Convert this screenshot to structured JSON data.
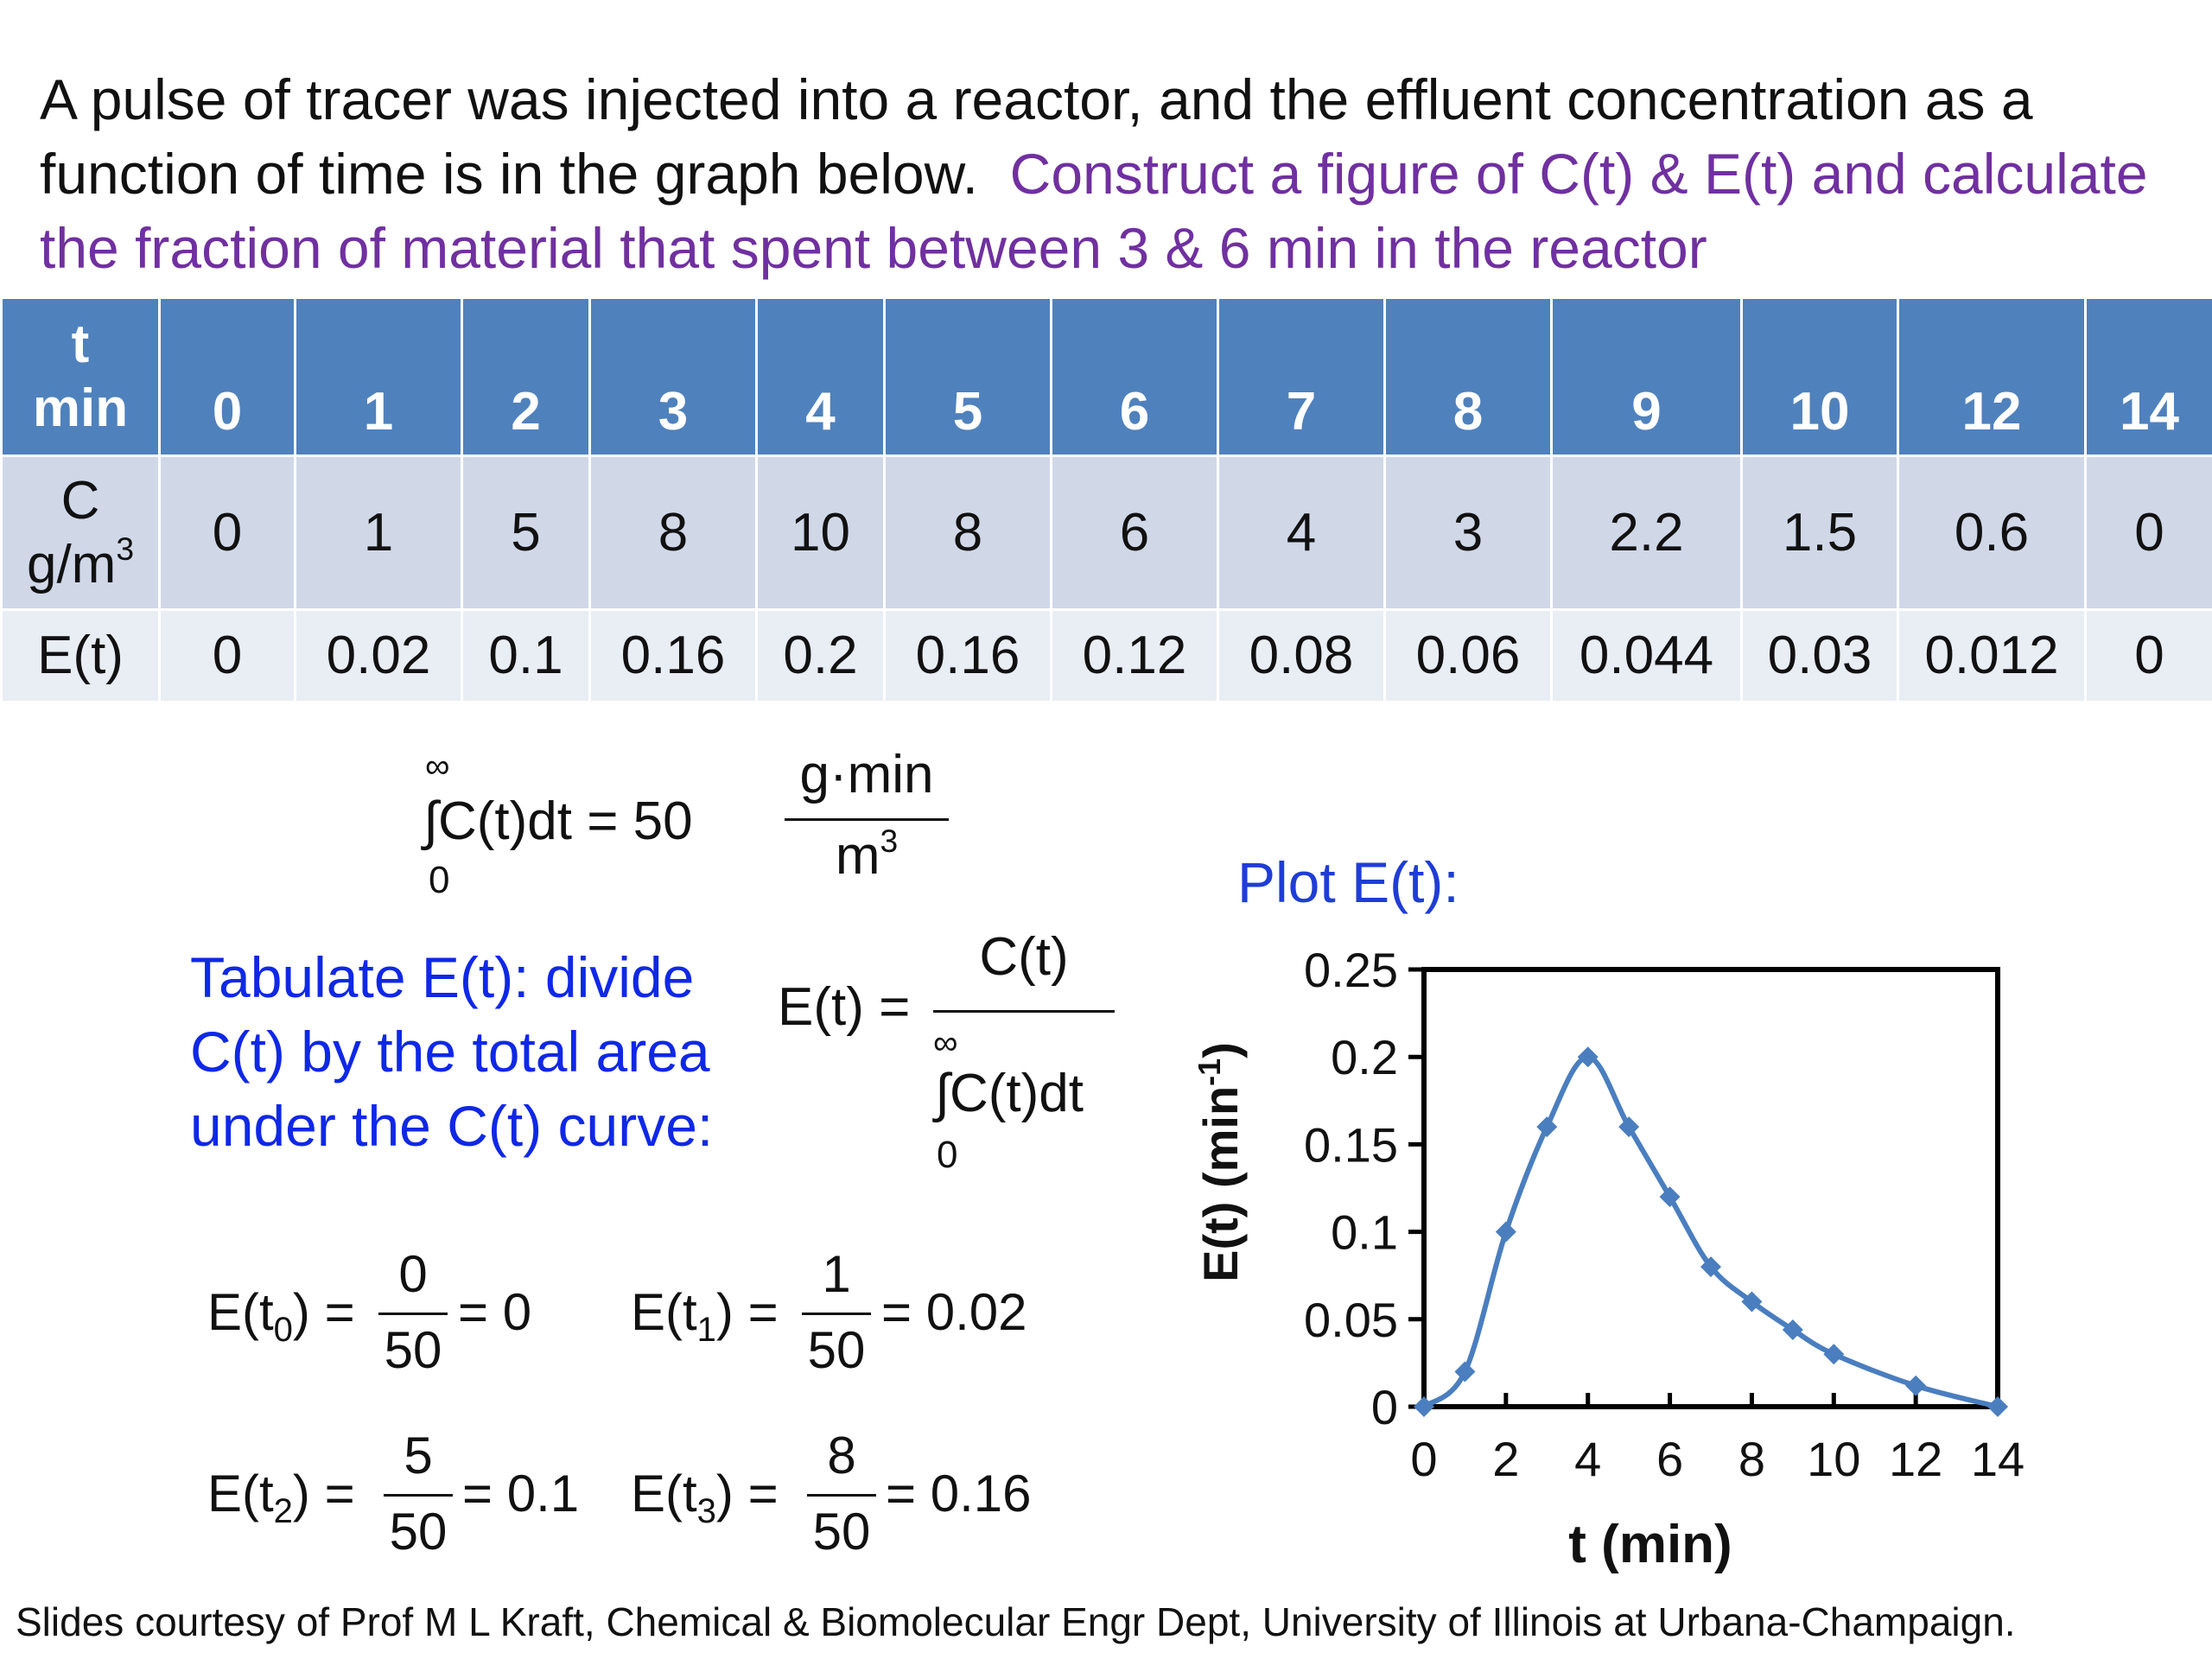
{
  "intro": {
    "statement": "A pulse of tracer was injected into a reactor, and the effluent concentration as a function of time is in the graph below.",
    "task": "Construct a figure of C(t) & E(t) and calculate the fraction of material that spent between 3 & 6 min in the reactor"
  },
  "table": {
    "t_label_1": "t",
    "t_label_2": "min",
    "c_label_1": "C",
    "c_label_2": "g/m",
    "c_label_sup": "3",
    "e_label": "E(t)",
    "t_values": [
      "0",
      "1",
      "2",
      "3",
      "4",
      "5",
      "6",
      "7",
      "8",
      "9",
      "10",
      "12",
      "14"
    ],
    "c_values": [
      "0",
      "1",
      "5",
      "8",
      "10",
      "8",
      "6",
      "4",
      "3",
      "2.2",
      "1.5",
      "0.6",
      "0"
    ],
    "e_values": [
      "0",
      "0.02",
      "0.1",
      "0.16",
      "0.2",
      "0.16",
      "0.12",
      "0.08",
      "0.06",
      "0.044",
      "0.03",
      "0.012",
      "0"
    ]
  },
  "integral_eq": {
    "upper": "∞",
    "lower": "0",
    "integrand": "∫C(t)dt = 50",
    "numerator": "g·min",
    "denominator": "m",
    "denominator_sup": "3"
  },
  "tabulate_text": {
    "line1": "Tabulate E(t): divide",
    "line2": "C(t) by the total area",
    "line3": "under the C(t) curve:"
  },
  "definition_eq": {
    "lhs": "E(t) =",
    "numerator": "C(t)",
    "upper": "∞",
    "denominator": "∫C(t)dt",
    "lower": "0"
  },
  "examples": [
    {
      "lhs": "E(t",
      "sub": "0",
      "close": ") =",
      "num": "0",
      "den": "50",
      "result": "= 0"
    },
    {
      "lhs": "E(t",
      "sub": "1",
      "close": ") =",
      "num": "1",
      "den": "50",
      "result": "= 0.02"
    },
    {
      "lhs": "E(t",
      "sub": "2",
      "close": ") =",
      "num": "5",
      "den": "50",
      "result": "= 0.1"
    },
    {
      "lhs": "E(t",
      "sub": "3",
      "close": ") =",
      "num": "8",
      "den": "50",
      "result": "= 0.16"
    }
  ],
  "plot_title": "Plot E(t):",
  "chart_data": {
    "type": "line",
    "x": [
      0,
      1,
      2,
      3,
      4,
      5,
      6,
      7,
      8,
      9,
      10,
      12,
      14
    ],
    "series": [
      {
        "values": [
          0,
          0.02,
          0.1,
          0.16,
          0.2,
          0.16,
          0.12,
          0.08,
          0.06,
          0.044,
          0.03,
          0.012,
          0
        ]
      }
    ],
    "xlabel": "t (min)",
    "ylabel": "E(t) (min",
    "ylabel_sup": "-1",
    "ylabel_close": ")",
    "xlim": [
      0,
      14
    ],
    "ylim": [
      0,
      0.25
    ],
    "xticks": [
      "0",
      "2",
      "4",
      "6",
      "8",
      "10",
      "12",
      "14"
    ],
    "yticks": [
      "0",
      "0.05",
      "0.1",
      "0.15",
      "0.2",
      "0.25"
    ],
    "line_color": "#4a7ebf",
    "grid": false,
    "markers": "diamond"
  },
  "credit": "Slides courtesy of Prof M L Kraft, Chemical & Biomolecular Engr Dept, University of Illinois at Urbana-Champaign."
}
